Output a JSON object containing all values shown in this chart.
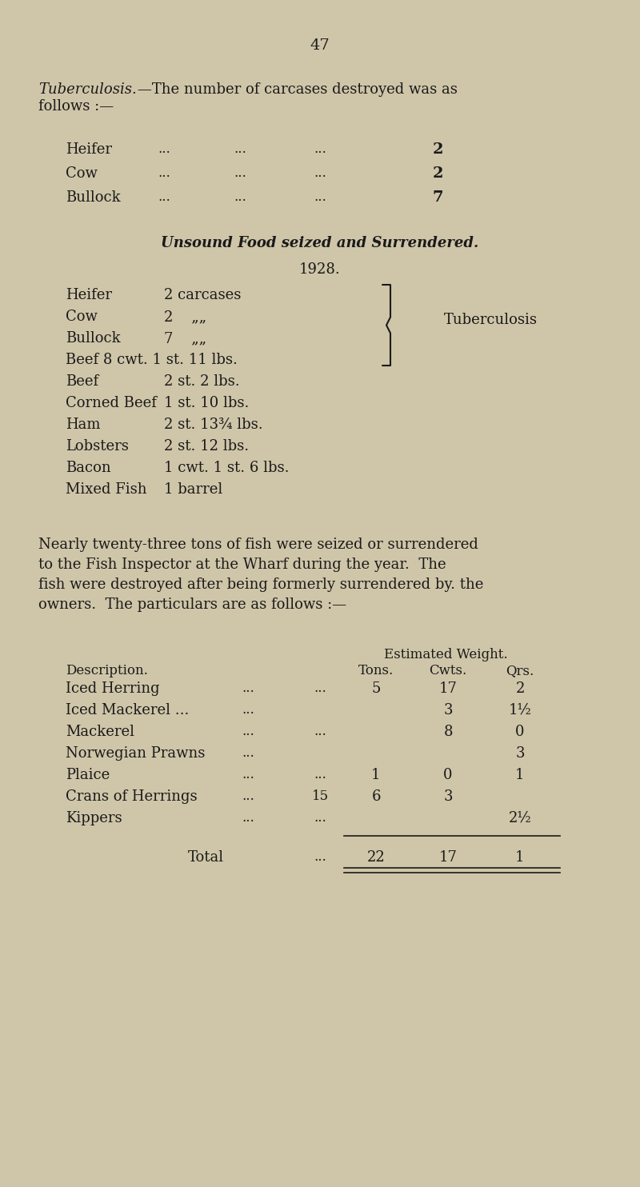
{
  "bg_color": "#cfc5a8",
  "text_color": "#1a1a1a",
  "page_number": "47",
  "carcases": [
    [
      "Heifer",
      "2"
    ],
    [
      "Cow",
      "2"
    ],
    [
      "Bullock",
      "7"
    ]
  ],
  "unsound_heading": "Unsound Food seized and Surrendered.",
  "year_heading": "1928.",
  "brace_items": [
    [
      "Heifer",
      "2 carcases"
    ],
    [
      "Cow",
      "2    „„"
    ],
    [
      "Bullock",
      "7    „„"
    ],
    [
      "Beef 8 cwt. 1 st. 11 lbs.",
      ""
    ]
  ],
  "tuberculosis_label": "Tuberculosis",
  "more_items": [
    [
      "Beef",
      "2 st. 2 lbs."
    ],
    [
      "Corned Beef",
      "1 st. 10 lbs."
    ],
    [
      "Ham",
      "2 st. 13¾ lbs."
    ],
    [
      "Lobsters",
      "2 st. 12 lbs."
    ],
    [
      "Bacon",
      "1 cwt. 1 st. 6 lbs."
    ],
    [
      "Mixed Fish",
      "1 barrel"
    ]
  ],
  "para_lines": [
    "Nearly twenty-three tons of fish were seized or surrendered",
    "to the Fish Inspector at the Wharf during the year.  The",
    "fish were destroyed after being formerly surrendered by. the",
    "owners.  The particulars are as follows :—"
  ],
  "fish_rows": [
    [
      "Iced Herring",
      "...",
      "...",
      "5",
      "17",
      "2"
    ],
    [
      "Iced Mackerel ...",
      "...",
      "",
      "",
      "3",
      "1½"
    ],
    [
      "Mackerel",
      "...",
      "...",
      "",
      "8",
      "0"
    ],
    [
      "Norwegian Prawns",
      "...",
      "",
      "",
      "",
      "3"
    ],
    [
      "Plaice",
      "...",
      "...",
      "1",
      "0",
      "1"
    ],
    [
      "Crans of Herrings",
      "...",
      "15",
      "6",
      "3",
      ""
    ],
    [
      "Kippers",
      "...",
      "...",
      "",
      "",
      "2½"
    ]
  ],
  "fish_total": [
    "22",
    "17",
    "1"
  ]
}
